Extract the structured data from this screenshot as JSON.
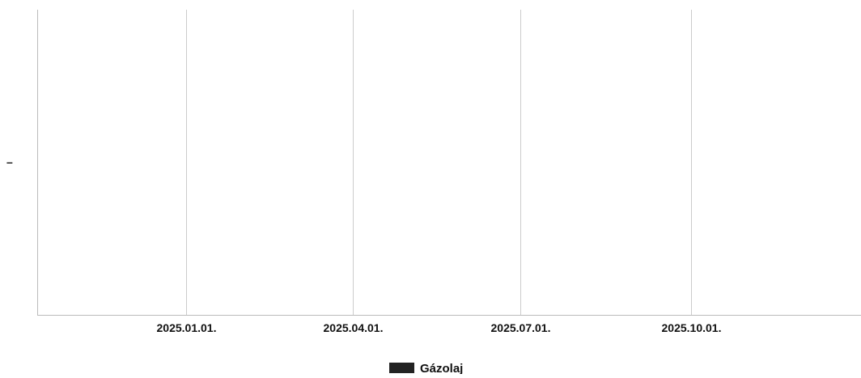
{
  "chart_data": {
    "type": "line",
    "x_type": "date",
    "x_ticks": [
      "2025.01.01.",
      "2025.04.01.",
      "2025.07.01.",
      "2025.10.01."
    ],
    "x_tick_dates": [
      "2024-12-31",
      "2025-03-31",
      "2025-06-30",
      "2025-09-30"
    ],
    "xlim": [
      "2024-10-12",
      "2025-12-31"
    ],
    "y_ticks": [
      "–"
    ],
    "grid": {
      "vertical": true,
      "horizontal": false
    },
    "legend": {
      "position": "bottom-center"
    },
    "series": [
      {
        "name": "Gázolaj",
        "color": "#222222",
        "x": [],
        "y": []
      }
    ],
    "title": "",
    "xlabel": "",
    "ylabel": ""
  },
  "colors": {
    "gridline": "#cccccc",
    "axis": "#bbbbbb",
    "text": "#111111"
  }
}
